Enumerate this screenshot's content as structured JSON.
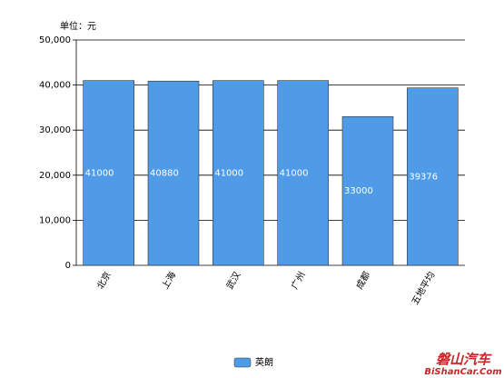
{
  "chart_data": {
    "type": "bar",
    "unit_label": "单位：元",
    "categories": [
      "北京",
      "上海",
      "武汉",
      "广州",
      "成都",
      "五地平均"
    ],
    "series": [
      {
        "name": "英朗",
        "color": "#4f9be8",
        "values": [
          41000,
          40880,
          41000,
          41000,
          33000,
          39376
        ]
      }
    ],
    "ylim": [
      0,
      50000
    ],
    "yticks": [
      0,
      {
        "value": 10000,
        "label": "10,000"
      },
      {
        "value": 20000,
        "label": "20,000"
      },
      {
        "value": 30000,
        "label": "30,000"
      },
      {
        "value": 40000,
        "label": "40,000"
      },
      {
        "value": 50000,
        "label": "50,000"
      }
    ],
    "grid": true,
    "legend": "bottom",
    "watermark": [
      "磐山汽车",
      "BiShanCar.Com"
    ]
  }
}
